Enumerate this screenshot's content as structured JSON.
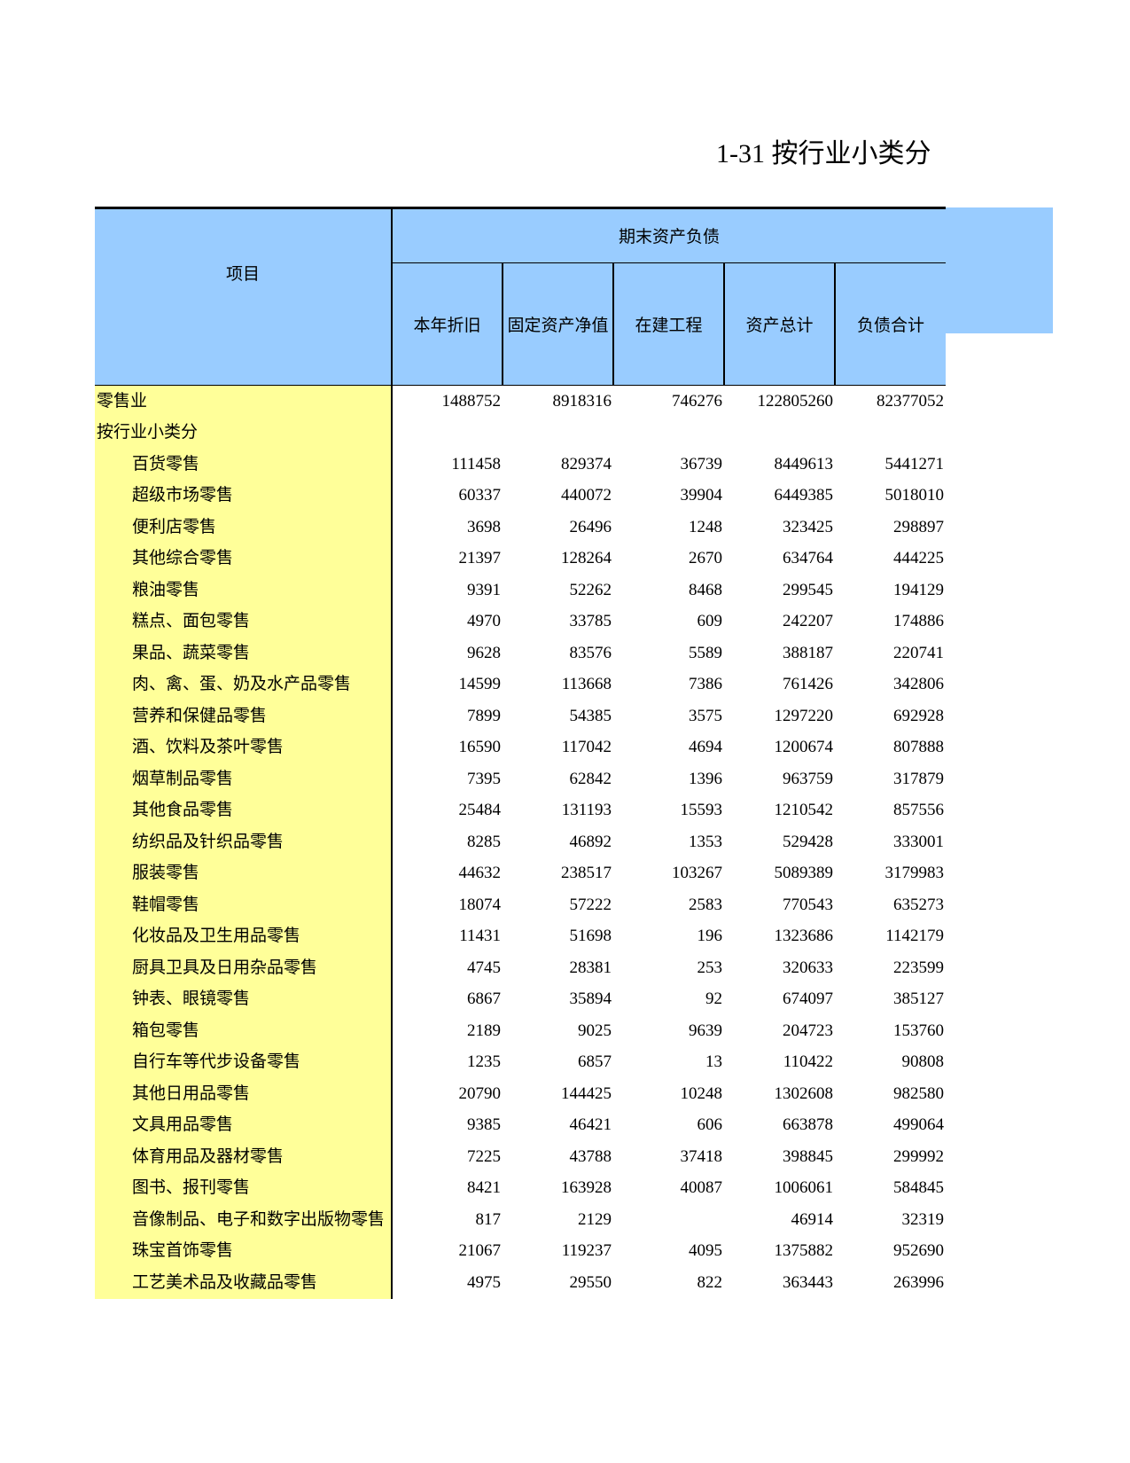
{
  "title": "1-31  按行业小类分",
  "header": {
    "item_label": "项目",
    "group_label": "期末资产负债",
    "columns": [
      "本年折旧",
      "固定资产净值",
      "在建工程",
      "资产总计",
      "负债合计"
    ]
  },
  "colors": {
    "header_bg": "#99ccff",
    "label_bg": "#ffff99"
  },
  "rows": [
    {
      "label": "零售业",
      "indent": false,
      "values": [
        "1488752",
        "8918316",
        "746276",
        "122805260",
        "82377052"
      ]
    },
    {
      "label": "按行业小类分",
      "indent": false,
      "values": [
        "",
        "",
        "",
        "",
        ""
      ]
    },
    {
      "label": "百货零售",
      "indent": true,
      "values": [
        "111458",
        "829374",
        "36739",
        "8449613",
        "5441271"
      ]
    },
    {
      "label": "超级市场零售",
      "indent": true,
      "values": [
        "60337",
        "440072",
        "39904",
        "6449385",
        "5018010"
      ]
    },
    {
      "label": "便利店零售",
      "indent": true,
      "values": [
        "3698",
        "26496",
        "1248",
        "323425",
        "298897"
      ]
    },
    {
      "label": "其他综合零售",
      "indent": true,
      "values": [
        "21397",
        "128264",
        "2670",
        "634764",
        "444225"
      ]
    },
    {
      "label": "粮油零售",
      "indent": true,
      "values": [
        "9391",
        "52262",
        "8468",
        "299545",
        "194129"
      ]
    },
    {
      "label": "糕点、面包零售",
      "indent": true,
      "values": [
        "4970",
        "33785",
        "609",
        "242207",
        "174886"
      ]
    },
    {
      "label": "果品、蔬菜零售",
      "indent": true,
      "values": [
        "9628",
        "83576",
        "5589",
        "388187",
        "220741"
      ]
    },
    {
      "label": "肉、禽、蛋、奶及水产品零售",
      "indent": true,
      "values": [
        "14599",
        "113668",
        "7386",
        "761426",
        "342806"
      ]
    },
    {
      "label": "营养和保健品零售",
      "indent": true,
      "values": [
        "7899",
        "54385",
        "3575",
        "1297220",
        "692928"
      ]
    },
    {
      "label": "酒、饮料及茶叶零售",
      "indent": true,
      "values": [
        "16590",
        "117042",
        "4694",
        "1200674",
        "807888"
      ]
    },
    {
      "label": "烟草制品零售",
      "indent": true,
      "values": [
        "7395",
        "62842",
        "1396",
        "963759",
        "317879"
      ]
    },
    {
      "label": "其他食品零售",
      "indent": true,
      "values": [
        "25484",
        "131193",
        "15593",
        "1210542",
        "857556"
      ]
    },
    {
      "label": "纺织品及针织品零售",
      "indent": true,
      "values": [
        "8285",
        "46892",
        "1353",
        "529428",
        "333001"
      ]
    },
    {
      "label": "服装零售",
      "indent": true,
      "values": [
        "44632",
        "238517",
        "103267",
        "5089389",
        "3179983"
      ]
    },
    {
      "label": "鞋帽零售",
      "indent": true,
      "values": [
        "18074",
        "57222",
        "2583",
        "770543",
        "635273"
      ]
    },
    {
      "label": "化妆品及卫生用品零售",
      "indent": true,
      "values": [
        "11431",
        "51698",
        "196",
        "1323686",
        "1142179"
      ]
    },
    {
      "label": "厨具卫具及日用杂品零售",
      "indent": true,
      "values": [
        "4745",
        "28381",
        "253",
        "320633",
        "223599"
      ]
    },
    {
      "label": "钟表、眼镜零售",
      "indent": true,
      "values": [
        "6867",
        "35894",
        "92",
        "674097",
        "385127"
      ]
    },
    {
      "label": "箱包零售",
      "indent": true,
      "values": [
        "2189",
        "9025",
        "9639",
        "204723",
        "153760"
      ]
    },
    {
      "label": "自行车等代步设备零售",
      "indent": true,
      "values": [
        "1235",
        "6857",
        "13",
        "110422",
        "90808"
      ]
    },
    {
      "label": "其他日用品零售",
      "indent": true,
      "values": [
        "20790",
        "144425",
        "10248",
        "1302608",
        "982580"
      ]
    },
    {
      "label": "文具用品零售",
      "indent": true,
      "values": [
        "9385",
        "46421",
        "606",
        "663878",
        "499064"
      ]
    },
    {
      "label": "体育用品及器材零售",
      "indent": true,
      "values": [
        "7225",
        "43788",
        "37418",
        "398845",
        "299992"
      ]
    },
    {
      "label": "图书、报刊零售",
      "indent": true,
      "values": [
        "8421",
        "163928",
        "40087",
        "1006061",
        "584845"
      ]
    },
    {
      "label": "音像制品、电子和数字出版物零售",
      "indent": true,
      "values": [
        "817",
        "2129",
        "",
        "46914",
        "32319"
      ]
    },
    {
      "label": "珠宝首饰零售",
      "indent": true,
      "values": [
        "21067",
        "119237",
        "4095",
        "1375882",
        "952690"
      ]
    },
    {
      "label": "工艺美术品及收藏品零售",
      "indent": true,
      "values": [
        "4975",
        "29550",
        "822",
        "363443",
        "263996"
      ]
    }
  ]
}
